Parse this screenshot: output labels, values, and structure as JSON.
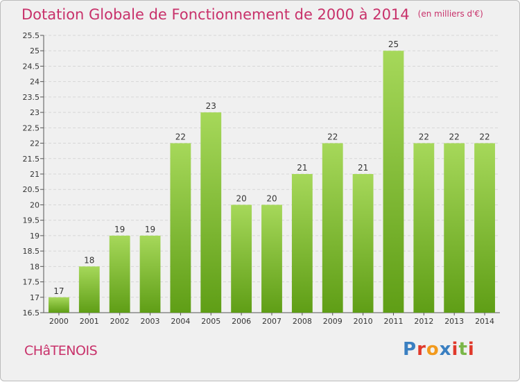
{
  "header": {
    "title": "Dotation Globale de Fonctionnement de 2000 à 2014",
    "unit": "(en milliers d'€)"
  },
  "footer": {
    "commune": "CHâTENOIS",
    "logo_text": "Proxiti",
    "logo_colors": [
      "#3a7fc1",
      "#e0392b",
      "#f29a1d",
      "#3a7fc1",
      "#e0392b",
      "#7ab648",
      "#e0392b"
    ]
  },
  "chart_data": {
    "type": "bar",
    "title": "Dotation Globale de Fonctionnement de 2000 à 2014",
    "xlabel": "",
    "ylabel": "",
    "categories": [
      "2000",
      "2001",
      "2002",
      "2003",
      "2004",
      "2005",
      "2006",
      "2007",
      "2008",
      "2009",
      "2010",
      "2011",
      "2012",
      "2013",
      "2014"
    ],
    "values": [
      17,
      18,
      19,
      19,
      22,
      23,
      20,
      20,
      21,
      22,
      21,
      25,
      22,
      22,
      22
    ],
    "ylim": [
      16.5,
      25.5
    ],
    "yticks": [
      "16.5",
      "17",
      "17.5",
      "18",
      "18.5",
      "19",
      "19.5",
      "20",
      "20.5",
      "21",
      "21.5",
      "22",
      "22.5",
      "23",
      "23.5",
      "24",
      "24.5",
      "25",
      "25.5"
    ],
    "grid": true,
    "bar_color": "#7dba2f",
    "bar_color_light": "#a6d85a"
  }
}
